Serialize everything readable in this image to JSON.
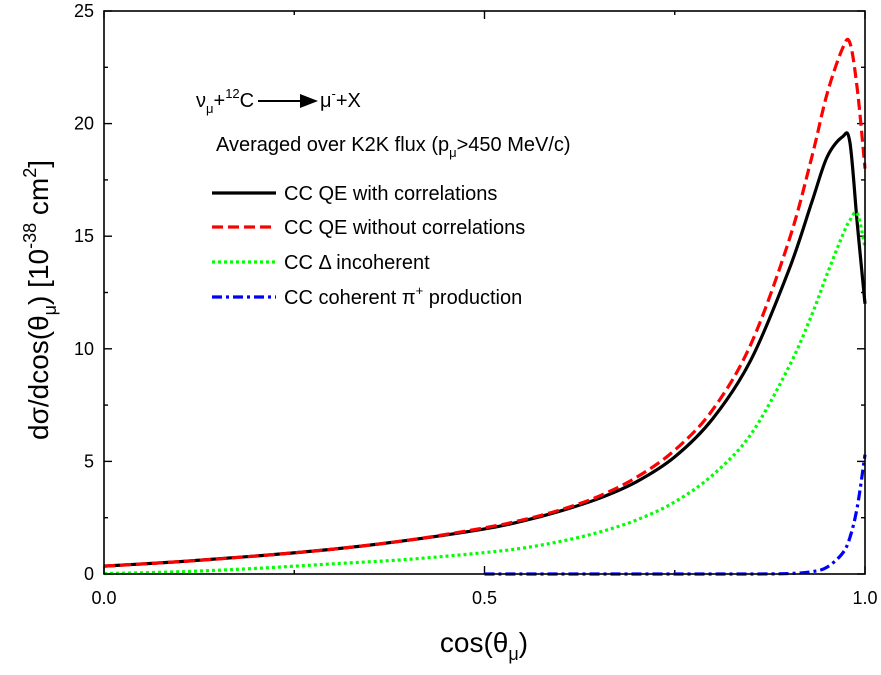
{
  "chart_data": {
    "type": "line",
    "xlim": [
      0.0,
      1.0
    ],
    "ylim": [
      0,
      25
    ],
    "x_ticks": [
      "0.0",
      "0.5",
      "1.0"
    ],
    "y_ticks": [
      "0",
      "5",
      "10",
      "15",
      "20",
      "25"
    ],
    "xlabel": {
      "main": "cos(θ",
      "sub": "μ",
      "close": ")"
    },
    "ylabel": {
      "a": "dσ/dcos(θ",
      "sub": "μ",
      "b": ") [10",
      "sup": "-38",
      "c": " cm",
      "sup2": "2",
      "d": "]"
    },
    "annotations": {
      "reaction": {
        "nu": "ν",
        "nu_sub": "μ",
        "plus": "+",
        "c_sup": "12",
        "c": "C",
        "mu": "μ",
        "mu_sup": "-",
        "x": "+X"
      },
      "flux": {
        "a": "Averaged over K2K flux (p",
        "sub": "μ",
        "b": ">450 MeV/c)"
      }
    },
    "legend": {
      "placement": "upper-left"
    },
    "series": [
      {
        "name": "CC QE with correlations",
        "color": "#000000",
        "style": "solid",
        "x": [
          0.0,
          0.1,
          0.2,
          0.3,
          0.4,
          0.5,
          0.55,
          0.6,
          0.65,
          0.7,
          0.75,
          0.8,
          0.85,
          0.9,
          0.93,
          0.95,
          0.97,
          0.98,
          0.99,
          1.0
        ],
        "y": [
          0.35,
          0.55,
          0.8,
          1.1,
          1.5,
          2.0,
          2.35,
          2.8,
          3.35,
          4.1,
          5.2,
          6.9,
          9.5,
          13.5,
          16.5,
          18.5,
          19.4,
          19.2,
          15.5,
          12.0
        ]
      },
      {
        "name": "CC QE without correlations",
        "color": "#ff0000",
        "style": "dashed",
        "x": [
          0.0,
          0.1,
          0.2,
          0.3,
          0.4,
          0.5,
          0.55,
          0.6,
          0.65,
          0.7,
          0.75,
          0.8,
          0.85,
          0.9,
          0.93,
          0.95,
          0.97,
          0.98,
          0.99,
          1.0
        ],
        "y": [
          0.35,
          0.55,
          0.8,
          1.1,
          1.5,
          2.05,
          2.4,
          2.85,
          3.45,
          4.3,
          5.5,
          7.3,
          10.2,
          14.8,
          18.5,
          21.3,
          23.3,
          23.6,
          21.5,
          18.0
        ]
      },
      {
        "name": "CC Δ incoherent",
        "color": "#00ff00",
        "style": "dotted",
        "x": [
          0.0,
          0.1,
          0.2,
          0.3,
          0.4,
          0.5,
          0.55,
          0.6,
          0.65,
          0.7,
          0.75,
          0.8,
          0.85,
          0.9,
          0.93,
          0.95,
          0.97,
          0.98,
          0.99,
          1.0
        ],
        "y": [
          0.02,
          0.1,
          0.25,
          0.45,
          0.65,
          0.95,
          1.15,
          1.45,
          1.85,
          2.4,
          3.2,
          4.4,
          6.2,
          9.2,
          11.5,
          13.3,
          15.0,
          15.7,
          16.0,
          14.5
        ]
      },
      {
        "name": "CC coherent π",
        "name_sup": "+",
        "name_after": " production",
        "color": "#0000ff",
        "style": "dashdot",
        "x": [
          0.5,
          0.6,
          0.7,
          0.8,
          0.85,
          0.9,
          0.93,
          0.95,
          0.97,
          0.98,
          0.99,
          1.0
        ],
        "y": [
          0.0,
          0.0,
          0.0,
          0.0,
          0.0,
          0.02,
          0.1,
          0.3,
          0.9,
          1.6,
          3.0,
          5.3
        ]
      }
    ]
  }
}
